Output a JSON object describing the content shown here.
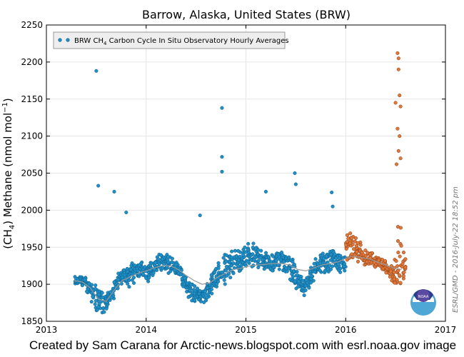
{
  "chart_data": {
    "type": "scatter",
    "title": "Barrow, Alaska, United States (BRW)",
    "ylabel": "(CH4) Methane (nmol mol−1)",
    "xlim": [
      2013,
      2017
    ],
    "ylim": [
      1850,
      2250
    ],
    "x_ticks": [
      "2013",
      "2014",
      "2015",
      "2016",
      "2017"
    ],
    "y_ticks": [
      "1850",
      "1900",
      "1950",
      "2000",
      "2050",
      "2100",
      "2150",
      "2200",
      "2250"
    ],
    "grid": true,
    "legend_position": "top-left",
    "legend": {
      "label_prefix": "BRW CH",
      "label_sub": "4",
      "label_suffix": " Carbon Cycle In Situ Observatory Hourly Averages"
    },
    "colors": {
      "primary": "#1f8fc8",
      "primary_edge": "#0d5c86",
      "preliminary": "#e0783a",
      "preliminary_edge": "#8a3a10",
      "trend": "#999999"
    },
    "series": [
      {
        "name": "BRW CH4 Carbon Cycle In Situ Observatory Hourly Averages",
        "type": "scatter",
        "color": "#1f8fc8",
        "x": [
          2013.28,
          2013.32,
          2013.36,
          2013.4,
          2013.44,
          2013.48,
          2013.52,
          2013.56,
          2013.6,
          2013.64,
          2013.68,
          2013.72,
          2013.76,
          2013.8,
          2013.84,
          2013.88,
          2013.92,
          2013.96,
          2014.0,
          2014.04,
          2014.08,
          2014.12,
          2014.16,
          2014.2,
          2014.24,
          2014.28,
          2014.32,
          2014.36,
          2014.4,
          2014.44,
          2014.48,
          2014.52,
          2014.56,
          2014.6,
          2014.64,
          2014.68,
          2014.72,
          2014.76,
          2014.8,
          2014.84,
          2014.88,
          2014.92,
          2014.96,
          2015.0,
          2015.04,
          2015.08,
          2015.12,
          2015.16,
          2015.2,
          2015.24,
          2015.28,
          2015.32,
          2015.36,
          2015.4,
          2015.44,
          2015.48,
          2015.52,
          2015.56,
          2015.6,
          2015.64,
          2015.68,
          2015.72,
          2015.76,
          2015.8,
          2015.84,
          2015.88,
          2015.92,
          2015.96
        ],
        "y_mid": [
          1905,
          1908,
          1902,
          1898,
          1890,
          1882,
          1878,
          1876,
          1880,
          1888,
          1900,
          1908,
          1912,
          1910,
          1915,
          1920,
          1922,
          1918,
          1916,
          1920,
          1925,
          1928,
          1930,
          1928,
          1925,
          1920,
          1915,
          1905,
          1895,
          1890,
          1888,
          1885,
          1884,
          1890,
          1900,
          1910,
          1918,
          1922,
          1925,
          1928,
          1930,
          1932,
          1935,
          1938,
          1940,
          1938,
          1935,
          1932,
          1930,
          1928,
          1930,
          1932,
          1930,
          1928,
          1920,
          1910,
          1900,
          1898,
          1900,
          1912,
          1920,
          1925,
          1928,
          1930,
          1932,
          1930,
          1928,
          1930
        ],
        "y_spread": [
          8,
          8,
          10,
          12,
          18,
          22,
          20,
          18,
          15,
          12,
          10,
          10,
          12,
          15,
          14,
          12,
          12,
          15,
          18,
          16,
          14,
          14,
          16,
          18,
          16,
          12,
          10,
          12,
          15,
          14,
          12,
          10,
          10,
          14,
          18,
          20,
          22,
          25,
          22,
          20,
          18,
          16,
          18,
          20,
          20,
          18,
          16,
          15,
          15,
          15,
          14,
          14,
          15,
          18,
          20,
          18,
          15,
          14,
          14,
          15,
          16,
          16,
          18,
          18,
          16,
          15,
          15,
          15
        ],
        "outliers": [
          [
            2013.5,
            2188
          ],
          [
            2013.52,
            2033
          ],
          [
            2013.68,
            2025
          ],
          [
            2013.8,
            1997
          ],
          [
            2014.54,
            1993
          ],
          [
            2014.76,
            2138
          ],
          [
            2014.76,
            2072
          ],
          [
            2014.76,
            2052
          ],
          [
            2015.2,
            2025
          ],
          [
            2015.49,
            2050
          ],
          [
            2015.5,
            2035
          ],
          [
            2015.86,
            2024
          ],
          [
            2015.87,
            2005
          ]
        ]
      },
      {
        "name": "Preliminary data",
        "type": "scatter",
        "color": "#e0783a",
        "x": [
          2016.0,
          2016.04,
          2016.08,
          2016.12,
          2016.16,
          2016.2,
          2016.24,
          2016.28,
          2016.32,
          2016.36,
          2016.4,
          2016.44,
          2016.48,
          2016.52,
          2016.56
        ],
        "y_mid": [
          1950,
          1952,
          1948,
          1942,
          1938,
          1935,
          1935,
          1932,
          1928,
          1925,
          1920,
          1915,
          1918,
          1935,
          1920
        ],
        "y_spread": [
          22,
          24,
          22,
          18,
          14,
          12,
          10,
          10,
          10,
          10,
          10,
          12,
          30,
          60,
          25
        ],
        "outliers": [
          [
            2016.5,
            2145
          ],
          [
            2016.52,
            2212
          ],
          [
            2016.53,
            2205
          ],
          [
            2016.53,
            2190
          ],
          [
            2016.54,
            2155
          ],
          [
            2016.55,
            2140
          ],
          [
            2016.52,
            2110
          ],
          [
            2016.54,
            2100
          ],
          [
            2016.53,
            2080
          ],
          [
            2016.55,
            2070
          ],
          [
            2016.51,
            2062
          ]
        ]
      },
      {
        "name": "trend",
        "type": "line",
        "color": "#999999",
        "x": [
          2013.28,
          2013.36,
          2013.44,
          2013.52,
          2013.6,
          2013.68,
          2013.76,
          2013.84,
          2013.92,
          2014.0,
          2014.08,
          2014.16,
          2014.24,
          2014.32,
          2014.4,
          2014.48,
          2014.56,
          2014.64,
          2014.72,
          2014.8,
          2014.88,
          2014.96,
          2015.04,
          2015.12,
          2015.2,
          2015.28,
          2015.36,
          2015.44,
          2015.52,
          2015.6,
          2015.68,
          2015.76,
          2015.84,
          2015.92,
          2016.0,
          2016.08,
          2016.16,
          2016.24,
          2016.32,
          2016.4,
          2016.48,
          2016.56
        ],
        "y": [
          1905,
          1903,
          1895,
          1880,
          1877,
          1892,
          1905,
          1910,
          1915,
          1918,
          1922,
          1925,
          1925,
          1920,
          1912,
          1905,
          1900,
          1902,
          1910,
          1915,
          1920,
          1922,
          1925,
          1926,
          1927,
          1928,
          1928,
          1926,
          1920,
          1918,
          1922,
          1926,
          1928,
          1930,
          1935,
          1938,
          1936,
          1934,
          1930,
          1926,
          1922,
          1920
        ]
      }
    ]
  },
  "side_note": "ESRL/GMD - 2016-July-22 18:52 pm",
  "logo_text": "NOAA",
  "footer": "Created by Sam Carana for Arctic-news.blogspot.com with esrl.noaa.gov image"
}
